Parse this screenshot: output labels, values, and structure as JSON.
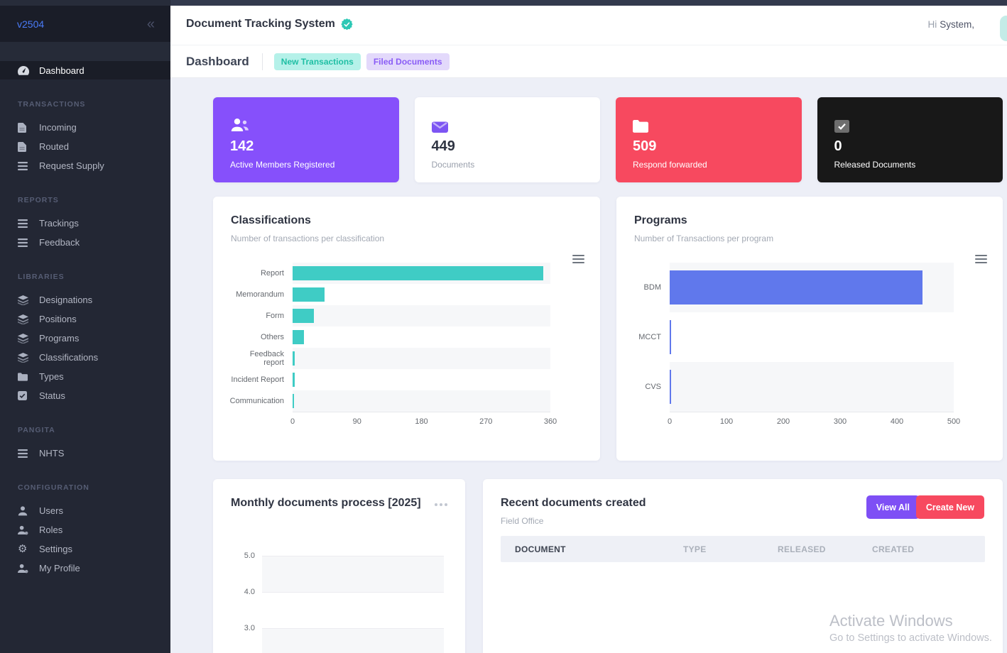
{
  "app": {
    "version": "v2504",
    "title": "Document Tracking System",
    "greeting_prefix": "Hi",
    "greeting_name": "System,"
  },
  "breadcrumb": {
    "current": "Dashboard",
    "badges": [
      {
        "label": "New Transactions",
        "bg": "#b5f1e9",
        "color": "#1fbfa4"
      },
      {
        "label": "Filed Documents",
        "bg": "#e3d9fb",
        "color": "#8a5cf6"
      }
    ]
  },
  "sidebar": {
    "dashboard": {
      "label": "Dashboard",
      "icon": "gauge-icon"
    },
    "sections": [
      {
        "title": "TRANSACTIONS",
        "items": [
          {
            "label": "Incoming",
            "icon": "file-icon"
          },
          {
            "label": "Routed",
            "icon": "file-icon"
          },
          {
            "label": "Request Supply",
            "icon": "list-icon"
          }
        ]
      },
      {
        "title": "REPORTS",
        "items": [
          {
            "label": "Trackings",
            "icon": "list-icon"
          },
          {
            "label": "Feedback",
            "icon": "list-icon"
          }
        ]
      },
      {
        "title": "LIBRARIES",
        "items": [
          {
            "label": "Designations",
            "icon": "layers-icon"
          },
          {
            "label": "Positions",
            "icon": "layers-icon"
          },
          {
            "label": "Programs",
            "icon": "layers-icon"
          },
          {
            "label": "Classifications",
            "icon": "layers-icon"
          },
          {
            "label": "Types",
            "icon": "folder-icon"
          },
          {
            "label": "Status",
            "icon": "checkbox-icon"
          }
        ]
      },
      {
        "title": "PANGITA",
        "items": [
          {
            "label": "NHTS",
            "icon": "list-icon"
          }
        ]
      },
      {
        "title": "CONFIGURATION",
        "items": [
          {
            "label": "Users",
            "icon": "user-icon"
          },
          {
            "label": "Roles",
            "icon": "user-role-icon"
          },
          {
            "label": "Settings",
            "icon": "gear-icon"
          },
          {
            "label": "My Profile",
            "icon": "user-role-icon"
          }
        ]
      }
    ]
  },
  "stats": [
    {
      "value": "142",
      "label": "Active Members Registered",
      "icon": "users-icon",
      "bg": "#8650fb"
    },
    {
      "value": "449",
      "label": "Documents",
      "icon": "envelope-icon",
      "bg": "#ffffff"
    },
    {
      "value": "509",
      "label": "Respond forwarded",
      "icon": "folder-icon",
      "bg": "#f7495f"
    },
    {
      "value": "0",
      "label": "Released Documents",
      "icon": "checked-box-icon",
      "bg": "#181818"
    }
  ],
  "chart_data": [
    {
      "type": "bar",
      "orientation": "horizontal",
      "title": "Classifications",
      "subtitle": "Number of transactions per classification",
      "categories": [
        "Report",
        "Memorandum",
        "Form",
        "Others",
        "Feedback report",
        "Incident Report",
        "Communication"
      ],
      "values": [
        350,
        45,
        30,
        16,
        3,
        3,
        2
      ],
      "xlim": [
        0,
        360
      ],
      "xticks": [
        0,
        90,
        180,
        270,
        360
      ],
      "bar_color": "#3fccc5",
      "grid": "striped-rows",
      "legend": false
    },
    {
      "type": "bar",
      "orientation": "horizontal",
      "title": "Programs",
      "subtitle": "Number of Transactions per program",
      "categories": [
        "BDM",
        "MCCT",
        "CVS"
      ],
      "values": [
        445,
        2,
        2
      ],
      "xlim": [
        0,
        500
      ],
      "xticks": [
        0,
        100,
        200,
        300,
        400,
        500
      ],
      "bar_color": "#6078ec",
      "grid": "striped-rows",
      "legend": false
    },
    {
      "type": "line",
      "title": "Monthly documents process [2025]",
      "yticks_visible": [
        "5.0",
        "4.0",
        "3.0"
      ],
      "series": [],
      "grid": "striped-rows"
    }
  ],
  "recent": {
    "title": "Recent documents created",
    "subtitle": "Field Office",
    "view_all_label": "View All",
    "create_new_label": "Create New",
    "columns": [
      "DOCUMENT",
      "TYPE",
      "RELEASED",
      "CREATED"
    ],
    "rows": []
  },
  "watermark": {
    "line1": "Activate Windows",
    "line2": "Go to Settings to activate Windows."
  }
}
